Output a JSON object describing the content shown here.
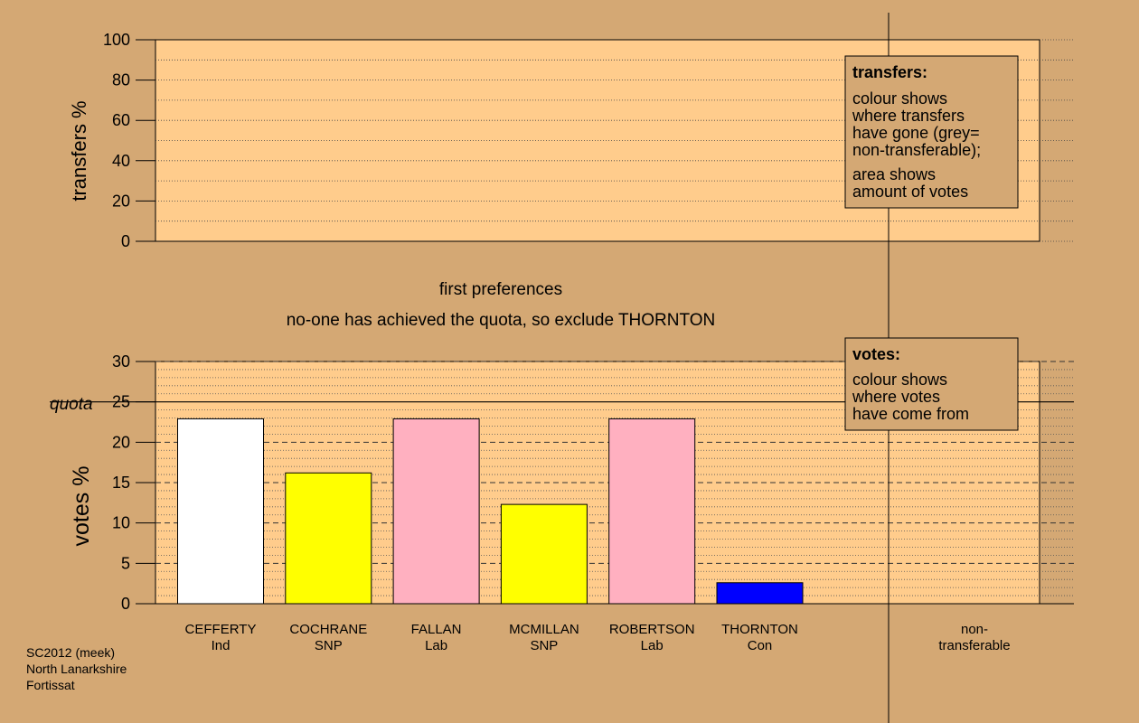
{
  "colors": {
    "page_bg": "#D4A874",
    "panel_bg": "#FFCC8C",
    "Ind": "#FFFFFF",
    "SNP": "#FFFF00",
    "Lab": "#FFB0C0",
    "Con": "#0000FF",
    "nontransferable": "#A0A0A0"
  },
  "top_chart": {
    "ylabel": "transfers %",
    "ylim": [
      0,
      100
    ],
    "ticks": [
      "100",
      "80",
      "60",
      "40",
      "20",
      "0"
    ]
  },
  "transfers_note": {
    "title": "transfers:",
    "lines": [
      "colour shows",
      "where transfers",
      "have gone (grey=",
      "non-transferable);"
    ],
    "lines2": [
      "area shows",
      "amount of votes"
    ]
  },
  "headings": {
    "line1": "first preferences",
    "line2": "no-one has achieved the quota, so exclude THORNTON"
  },
  "votes_note": {
    "title": "votes:",
    "lines": [
      "colour shows",
      "where votes",
      "have come from"
    ]
  },
  "bottom_chart": {
    "ylabel": "votes %",
    "quota_label": "quota",
    "ticks": [
      "30",
      "25",
      "20",
      "15",
      "10",
      "5",
      "0"
    ]
  },
  "footer": {
    "lines": [
      "SC2012 (meek)",
      "North Lanarkshire",
      "Fortissat"
    ]
  },
  "chart_data": {
    "type": "bar",
    "ylabel": "votes %",
    "ylim": [
      0,
      30
    ],
    "quota": 25,
    "categories": [
      {
        "name": "CEFFERTY",
        "party": "Ind",
        "value": 22.9
      },
      {
        "name": "COCHRANE",
        "party": "SNP",
        "value": 16.2
      },
      {
        "name": "FALLAN",
        "party": "Lab",
        "value": 22.9
      },
      {
        "name": "MCMILLAN",
        "party": "SNP",
        "value": 12.3
      },
      {
        "name": "ROBERTSON",
        "party": "Lab",
        "value": 22.9
      },
      {
        "name": "THORNTON",
        "party": "Con",
        "value": 2.6
      }
    ],
    "nontransferable_label": [
      "non-",
      "transferable"
    ],
    "nontransferable_value": 0
  }
}
